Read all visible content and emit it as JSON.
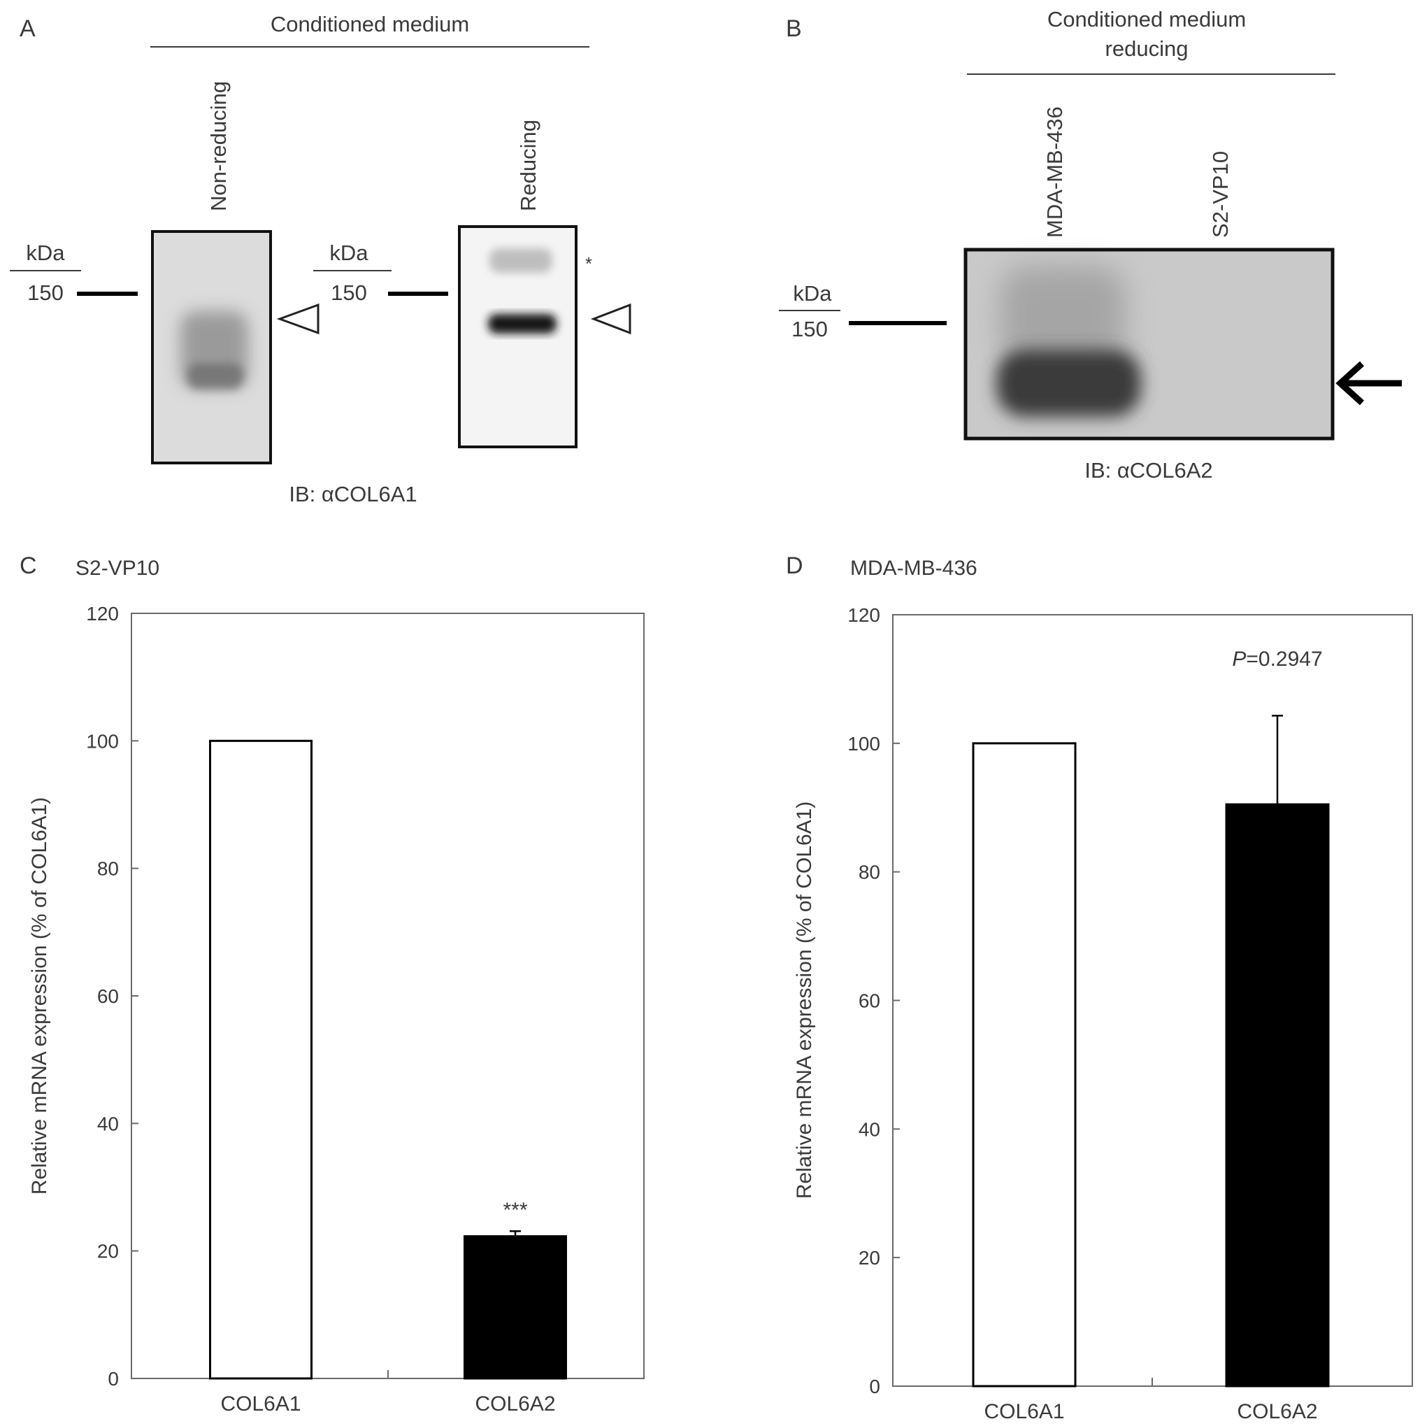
{
  "panel_a": {
    "panel_label": "A",
    "header": "Conditioned medium",
    "lanes": [
      "Non-reducing",
      "Reducing"
    ],
    "marker_unit": "kDa",
    "marker_value": "150",
    "asterisk": "*",
    "caption": "IB: αCOL6A1"
  },
  "panel_b": {
    "panel_label": "B",
    "header_line1": "Conditioned medium",
    "header_line2": "reducing",
    "lanes": [
      "MDA-MB-436",
      "S2-VP10"
    ],
    "marker_unit": "kDa",
    "marker_value": "150",
    "caption": "IB: αCOL6A2"
  },
  "panel_c": {
    "panel_label": "C"
  },
  "panel_d": {
    "panel_label": "D"
  },
  "chart_data": [
    {
      "type": "bar",
      "title": "S2-VP10",
      "categories": [
        "COL6A1",
        "COL6A2"
      ],
      "values": [
        100,
        22.3
      ],
      "error": [
        0,
        0.8
      ],
      "ylabel": "Relative mRNA expression (% of COL6A1)",
      "ylim": [
        0,
        120
      ],
      "yticks": [
        0,
        20,
        40,
        60,
        80,
        100,
        120
      ],
      "bar_colors": [
        "#ffffff",
        "#000000"
      ],
      "annotation": "***"
    },
    {
      "type": "bar",
      "title": "MDA-MB-436",
      "categories": [
        "COL6A1",
        "COL6A2"
      ],
      "values": [
        100,
        90.5
      ],
      "error": [
        0,
        13.8
      ],
      "ylabel": "Relative mRNA expression (% of COL6A1)",
      "ylim": [
        0,
        120
      ],
      "yticks": [
        0,
        20,
        40,
        60,
        80,
        100,
        120
      ],
      "bar_colors": [
        "#ffffff",
        "#000000"
      ],
      "annotation_italic": "P",
      "annotation": "=0.2947"
    }
  ]
}
